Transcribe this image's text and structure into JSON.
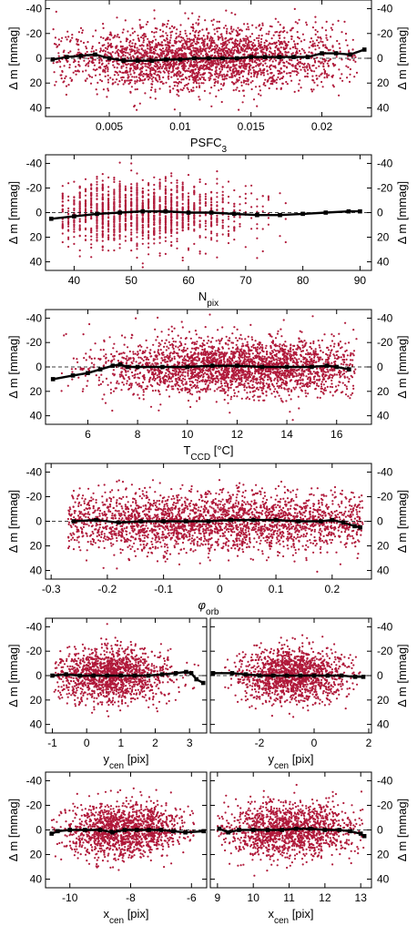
{
  "figure": {
    "colors": {
      "points": "#b0193a",
      "trend": "#000000",
      "frame": "#000000",
      "background": "#ffffff"
    }
  },
  "chart_data": [
    {
      "id": "psfc3",
      "type": "scatter",
      "xlabel": "PSFC3",
      "xlabel_parts": [
        {
          "t": "PSFC"
        },
        {
          "t": "3",
          "sub": true
        }
      ],
      "ylabel": "Δ m [mmag]",
      "xlim": [
        0.0005,
        0.0235
      ],
      "ylim": [
        -47,
        47
      ],
      "y_inverted": true,
      "xticks": [
        0.005,
        0.01,
        0.015,
        0.02
      ],
      "xtick_labels": [
        "0.005",
        "0.01",
        "0.015",
        "0.02"
      ],
      "yticks": [
        -40,
        -20,
        0,
        20,
        40
      ],
      "ytick_labels": [
        "-40",
        "-20",
        "0",
        "20",
        "40"
      ],
      "ylabel_right": true,
      "grid": false,
      "scatter": {
        "x_range": [
          0.001,
          0.0225
        ],
        "x_center": 0.0115,
        "x_spread": 0.0052,
        "y_sigma": 12.5,
        "y_clip": 44,
        "n": 2600
      },
      "trend": {
        "x": [
          0.001,
          0.002,
          0.003,
          0.004,
          0.005,
          0.006,
          0.007,
          0.008,
          0.009,
          0.01,
          0.011,
          0.012,
          0.013,
          0.014,
          0.015,
          0.016,
          0.017,
          0.018,
          0.019,
          0.02,
          0.021,
          0.022,
          0.023
        ],
        "y": [
          1,
          -1,
          -2,
          -3,
          0,
          2,
          2,
          2,
          1,
          1,
          0,
          0,
          0,
          0,
          -1,
          -1,
          -1,
          -1,
          -1,
          -4,
          -4,
          -3,
          -7
        ]
      }
    },
    {
      "id": "npix",
      "type": "scatter",
      "xlabel": "Npix",
      "xlabel_parts": [
        {
          "t": "N"
        },
        {
          "t": "pix",
          "sub": true
        }
      ],
      "ylabel": "Δ m [mmag]",
      "xlim": [
        35,
        92
      ],
      "ylim": [
        -47,
        47
      ],
      "y_inverted": true,
      "xticks": [
        40,
        50,
        60,
        70,
        80,
        90
      ],
      "xtick_labels": [
        "40",
        "50",
        "60",
        "70",
        "80",
        "90"
      ],
      "yticks": [
        -40,
        -20,
        0,
        20,
        40
      ],
      "ytick_labels": [
        "-40",
        "-20",
        "0",
        "20",
        "40"
      ],
      "ylabel_right": true,
      "grid": false,
      "scatter": {
        "discrete_x": [
          38,
          39,
          40,
          41,
          42,
          43,
          44,
          45,
          46,
          47,
          48,
          49,
          50,
          51,
          52,
          53,
          54,
          55,
          56,
          57,
          58,
          59,
          60,
          61,
          62,
          63,
          64,
          65,
          66,
          67,
          68,
          69,
          70,
          71,
          72,
          73,
          74,
          75,
          76,
          77
        ],
        "x_center": 51,
        "x_spread": 9,
        "y_sigma": 13,
        "y_clip": 46,
        "n": 1500
      },
      "trend": {
        "x": [
          36,
          40,
          44,
          48,
          52,
          56,
          60,
          64,
          68,
          72,
          76,
          80,
          84,
          88,
          90
        ],
        "y": [
          5,
          3,
          1,
          0,
          -1,
          -1,
          0,
          0,
          1,
          2,
          2,
          1,
          0,
          -1,
          -1
        ]
      }
    },
    {
      "id": "tccd",
      "type": "scatter",
      "xlabel": "TCCD [°C]",
      "xlabel_parts": [
        {
          "t": "T"
        },
        {
          "t": "CCD",
          "sub": true
        },
        {
          "t": " [°C]"
        }
      ],
      "ylabel": "Δ m [mmag]",
      "xlim": [
        4.3,
        17.4
      ],
      "ylim": [
        -47,
        47
      ],
      "y_inverted": true,
      "xticks": [
        6,
        8,
        10,
        12,
        14,
        16
      ],
      "xtick_labels": [
        "6",
        "8",
        "10",
        "12",
        "14",
        "16"
      ],
      "yticks": [
        -40,
        -20,
        0,
        20,
        40
      ],
      "ytick_labels": [
        "-40",
        "-20",
        "0",
        "20",
        "40"
      ],
      "ylabel_right": true,
      "grid": false,
      "scatter": {
        "x_range": [
          4.8,
          16.8
        ],
        "x_center": 12,
        "x_spread": 2.8,
        "y_sigma": 12,
        "y_clip": 44,
        "n": 2600
      },
      "trend": {
        "x": [
          4.6,
          5.4,
          6.0,
          6.5,
          7.0,
          7.3,
          7.6,
          8.0,
          9,
          10,
          11,
          12,
          13,
          14,
          15,
          15.6,
          16.0,
          16.5
        ],
        "y": [
          10,
          7,
          5,
          2,
          -1,
          -2,
          0,
          0,
          0,
          0,
          -1,
          -1,
          0,
          0,
          0,
          -1,
          0,
          2
        ]
      }
    },
    {
      "id": "phi",
      "type": "scatter",
      "xlabel": "φorb",
      "xlabel_parts": [
        {
          "t": "φ",
          "italic": true
        },
        {
          "t": "orb",
          "sub": true
        }
      ],
      "ylabel": "Δ m [mmag]",
      "xlim": [
        -0.31,
        0.27
      ],
      "ylim": [
        -47,
        47
      ],
      "y_inverted": true,
      "xticks": [
        -0.3,
        -0.2,
        -0.1,
        0,
        0.1,
        0.2
      ],
      "xtick_labels": [
        "-0.3",
        "-0.2",
        "-0.1",
        "0",
        "0.1",
        "0.2"
      ],
      "yticks": [
        -40,
        -20,
        0,
        20,
        40
      ],
      "ytick_labels": [
        "-40",
        "-20",
        "0",
        "20",
        "40"
      ],
      "ylabel_right": true,
      "grid": false,
      "scatter": {
        "x_range": [
          -0.27,
          0.255
        ],
        "x_center": 0.0,
        "x_spread": 0.2,
        "y_sigma": 12,
        "y_clip": 44,
        "n": 2600
      },
      "trend": {
        "x": [
          -0.26,
          -0.22,
          -0.18,
          -0.14,
          -0.1,
          -0.06,
          -0.02,
          0.02,
          0.06,
          0.1,
          0.14,
          0.18,
          0.2,
          0.22,
          0.24,
          0.25
        ],
        "y": [
          0,
          -1,
          1,
          0,
          0,
          0,
          0,
          -1,
          -1,
          -1,
          0,
          0,
          -1,
          1,
          4,
          5
        ]
      }
    },
    {
      "id": "ycen-a",
      "type": "scatter",
      "xlabel": "ycen [pix]",
      "xlabel_parts": [
        {
          "t": "y"
        },
        {
          "t": "cen",
          "sub": true
        },
        {
          "t": " [pix]"
        }
      ],
      "ylabel": "Δ m [mmag]",
      "xlim": [
        -1.2,
        3.5
      ],
      "ylim": [
        -47,
        47
      ],
      "y_inverted": true,
      "xticks": [
        -1,
        0,
        1,
        2,
        3
      ],
      "xtick_labels": [
        "-1",
        "0",
        "1",
        "2",
        "3"
      ],
      "yticks": [
        -40,
        -20,
        0,
        20,
        40
      ],
      "ytick_labels": [
        "-40",
        "-20",
        "0",
        "20",
        "40"
      ],
      "ylabel_right": false,
      "grid": false,
      "scatter": {
        "x_range": [
          -1.0,
          3.3
        ],
        "x_center": 0.7,
        "x_spread": 0.85,
        "y_sigma": 11,
        "y_clip": 44,
        "n": 1400
      },
      "trend": {
        "x": [
          -1.0,
          -0.6,
          -0.2,
          0.2,
          0.6,
          1.0,
          1.4,
          1.8,
          2.2,
          2.6,
          2.9,
          3.05,
          3.2,
          3.4
        ],
        "y": [
          0,
          -1,
          0,
          0,
          0,
          0,
          0,
          0,
          -1,
          -2,
          -3,
          -2,
          3,
          6
        ]
      }
    },
    {
      "id": "ycen-b",
      "type": "scatter",
      "xlabel": "ycen [pix]",
      "xlabel_parts": [
        {
          "t": "y"
        },
        {
          "t": "cen",
          "sub": true
        },
        {
          "t": " [pix]"
        }
      ],
      "ylabel": "Δ m [mmag]",
      "xlim": [
        -3.8,
        2.1
      ],
      "ylim": [
        -47,
        47
      ],
      "y_inverted": true,
      "xticks": [
        -2,
        0,
        2
      ],
      "xtick_labels": [
        "-2",
        "0",
        "2"
      ],
      "yticks": [
        -40,
        -20,
        0,
        20,
        40
      ],
      "ytick_labels": [
        "-40",
        "-20",
        "0",
        "20",
        "40"
      ],
      "ylabel_right": true,
      "grid": false,
      "scatter": {
        "x_range": [
          -3.4,
          1.7
        ],
        "x_center": -0.8,
        "x_spread": 1.0,
        "y_sigma": 11,
        "y_clip": 44,
        "n": 1400
      },
      "trend": {
        "x": [
          -3.7,
          -3.0,
          -2.5,
          -2.0,
          -1.5,
          -1.0,
          -0.5,
          0.0,
          0.5,
          1.0,
          1.5,
          1.8
        ],
        "y": [
          -2,
          -2,
          -1,
          0,
          0,
          0,
          0,
          0,
          0,
          0,
          1,
          1
        ]
      }
    },
    {
      "id": "xcen-a",
      "type": "scatter",
      "xlabel": "xcen [pix]",
      "xlabel_parts": [
        {
          "t": "x"
        },
        {
          "t": "cen",
          "sub": true
        },
        {
          "t": " [pix]"
        }
      ],
      "ylabel": "Δ m [mmag]",
      "xlim": [
        -10.8,
        -5.5
      ],
      "ylim": [
        -47,
        47
      ],
      "y_inverted": true,
      "xticks": [
        -10,
        -8,
        -6
      ],
      "xtick_labels": [
        "-10",
        "-8",
        "-6"
      ],
      "yticks": [
        -40,
        -20,
        0,
        20,
        40
      ],
      "ytick_labels": [
        "-40",
        "-20",
        "0",
        "20",
        "40"
      ],
      "ylabel_right": false,
      "grid": false,
      "scatter": {
        "x_range": [
          -10.6,
          -5.9
        ],
        "x_center": -8.2,
        "x_spread": 1.0,
        "y_sigma": 11,
        "y_clip": 44,
        "n": 1400
      },
      "trend": {
        "x": [
          -10.6,
          -10.4,
          -10.0,
          -9.5,
          -9.0,
          -8.6,
          -8.2,
          -7.8,
          -7.4,
          -7.0,
          -6.6,
          -6.2,
          -5.6
        ],
        "y": [
          3,
          1,
          0,
          0,
          0,
          2,
          0,
          0,
          0,
          0,
          1,
          2,
          1
        ]
      }
    },
    {
      "id": "xcen-b",
      "type": "scatter",
      "xlabel": "xcen [pix]",
      "xlabel_parts": [
        {
          "t": "x"
        },
        {
          "t": "cen",
          "sub": true
        },
        {
          "t": " [pix]"
        }
      ],
      "ylabel": "Δ m [mmag]",
      "xlim": [
        8.8,
        13.3
      ],
      "ylim": [
        -47,
        47
      ],
      "y_inverted": true,
      "xticks": [
        9,
        10,
        11,
        12,
        13
      ],
      "xtick_labels": [
        "9",
        "10",
        "11",
        "12",
        "13"
      ],
      "yticks": [
        -40,
        -20,
        0,
        20,
        40
      ],
      "ytick_labels": [
        "-40",
        "-20",
        "0",
        "20",
        "40"
      ],
      "ylabel_right": true,
      "grid": false,
      "scatter": {
        "x_range": [
          9.0,
          13.1
        ],
        "x_center": 11.0,
        "x_spread": 0.95,
        "y_sigma": 11,
        "y_clip": 44,
        "n": 1400
      },
      "trend": {
        "x": [
          9.05,
          9.3,
          9.6,
          10.0,
          10.4,
          10.8,
          11.2,
          11.6,
          12.0,
          12.4,
          12.7,
          13.0,
          13.1
        ],
        "y": [
          -1,
          2,
          0,
          0,
          0,
          0,
          -1,
          -1,
          0,
          0,
          1,
          3,
          5
        ]
      }
    }
  ]
}
